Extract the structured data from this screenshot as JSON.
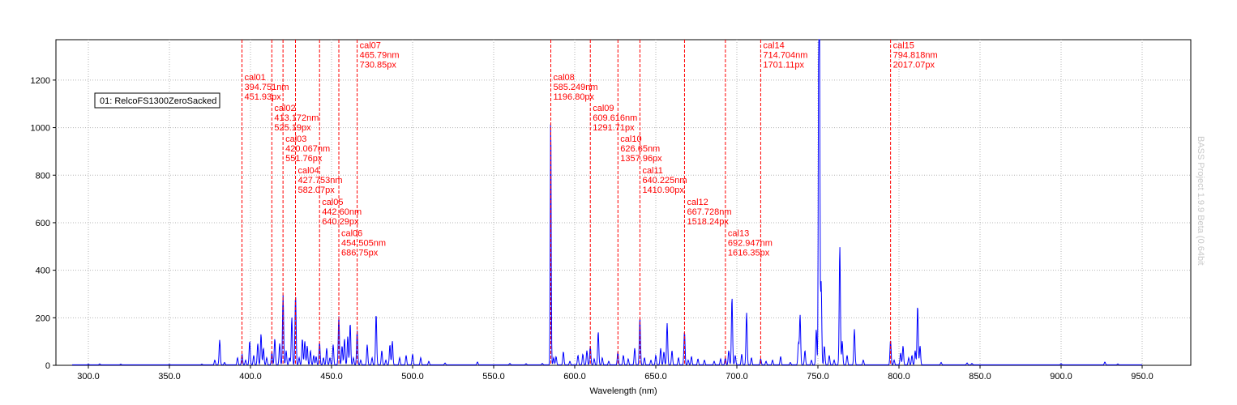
{
  "chart_data": {
    "type": "line",
    "title": "",
    "xlabel": "Wavelength (nm)",
    "ylabel": "",
    "xlim": [
      280,
      980
    ],
    "ylim": [
      0,
      1370
    ],
    "xticks": [
      "300.0",
      "350.0",
      "400.0",
      "450.0",
      "500.0",
      "550.0",
      "600.0",
      "650.0",
      "700.0",
      "750.0",
      "800.0",
      "850.0",
      "900.0",
      "950.0"
    ],
    "xtick_values": [
      300,
      350,
      400,
      450,
      500,
      550,
      600,
      650,
      700,
      750,
      800,
      850,
      900,
      950
    ],
    "yticks": [
      "0",
      "200",
      "400",
      "600",
      "800",
      "1000",
      "1200"
    ],
    "ytick_values": [
      0,
      200,
      400,
      600,
      800,
      1000,
      1200
    ],
    "grid": true,
    "legend": {
      "placement": "top-left",
      "entries": [
        "01: RelcoFS1300ZeroSacked"
      ]
    },
    "watermark": "BASS Project 1.9.9 Beta (0.64bit",
    "colors": {
      "spectrum": "#0000ff",
      "calibration": "#ff0000",
      "overlap": "#800080",
      "grid": "#b4b4b4"
    },
    "series": [
      {
        "name": "01: RelcoFS1300ZeroSacked",
        "peaks": [
          [
            300,
            3
          ],
          [
            307,
            4
          ],
          [
            320,
            3
          ],
          [
            350,
            2
          ],
          [
            370,
            3
          ],
          [
            378,
            20
          ],
          [
            381,
            105
          ],
          [
            384,
            10
          ],
          [
            392,
            30
          ],
          [
            394.8,
            45
          ],
          [
            397,
            20
          ],
          [
            399.5,
            100
          ],
          [
            402,
            40
          ],
          [
            404.5,
            90
          ],
          [
            406.5,
            130
          ],
          [
            408,
            70
          ],
          [
            410,
            30
          ],
          [
            413.2,
            55
          ],
          [
            415,
            110
          ],
          [
            418,
            90
          ],
          [
            420.1,
            295
          ],
          [
            422,
            60
          ],
          [
            424,
            30
          ],
          [
            425.5,
            200
          ],
          [
            427.8,
            295
          ],
          [
            430,
            30
          ],
          [
            432,
            110
          ],
          [
            433.5,
            100
          ],
          [
            435,
            80
          ],
          [
            437,
            60
          ],
          [
            439,
            40
          ],
          [
            440.5,
            35
          ],
          [
            442.6,
            95
          ],
          [
            445,
            30
          ],
          [
            447,
            70
          ],
          [
            449,
            30
          ],
          [
            451,
            85
          ],
          [
            454.5,
            205
          ],
          [
            456.5,
            80
          ],
          [
            458,
            110
          ],
          [
            460,
            120
          ],
          [
            461.5,
            175
          ],
          [
            463.5,
            30
          ],
          [
            465.8,
            145
          ],
          [
            468,
            20
          ],
          [
            472,
            85
          ],
          [
            475,
            30
          ],
          [
            477.5,
            215
          ],
          [
            481,
            60
          ],
          [
            483.5,
            20
          ],
          [
            486,
            85
          ],
          [
            487.5,
            100
          ],
          [
            492,
            30
          ],
          [
            496,
            40
          ],
          [
            500,
            45
          ],
          [
            505,
            30
          ],
          [
            510,
            15
          ],
          [
            520,
            8
          ],
          [
            540,
            12
          ],
          [
            560,
            6
          ],
          [
            570,
            5
          ],
          [
            580,
            6
          ],
          [
            585.2,
            1060
          ],
          [
            587,
            30
          ],
          [
            588.5,
            35
          ],
          [
            593,
            55
          ],
          [
            597,
            15
          ],
          [
            602,
            40
          ],
          [
            605,
            45
          ],
          [
            607.5,
            60
          ],
          [
            609.6,
            80
          ],
          [
            612,
            25
          ],
          [
            614.5,
            140
          ],
          [
            617,
            30
          ],
          [
            621,
            15
          ],
          [
            626.6,
            55
          ],
          [
            630,
            40
          ],
          [
            633,
            25
          ],
          [
            637,
            70
          ],
          [
            640.2,
            200
          ],
          [
            643,
            30
          ],
          [
            647,
            20
          ],
          [
            650,
            40
          ],
          [
            653,
            70
          ],
          [
            655,
            55
          ],
          [
            657,
            175
          ],
          [
            660,
            60
          ],
          [
            664,
            30
          ],
          [
            667.7,
            140
          ],
          [
            670,
            20
          ],
          [
            672,
            35
          ],
          [
            676,
            25
          ],
          [
            680,
            20
          ],
          [
            686,
            15
          ],
          [
            690,
            25
          ],
          [
            692.9,
            30
          ],
          [
            695,
            60
          ],
          [
            697,
            285
          ],
          [
            699,
            40
          ],
          [
            703,
            45
          ],
          [
            706,
            220
          ],
          [
            709,
            30
          ],
          [
            714.7,
            25
          ],
          [
            718,
            15
          ],
          [
            722,
            20
          ],
          [
            727,
            35
          ],
          [
            733,
            10
          ],
          [
            738,
            90
          ],
          [
            739,
            210
          ],
          [
            742,
            60
          ],
          [
            746,
            20
          ],
          [
            749,
            150
          ],
          [
            750.5,
            1360
          ],
          [
            751,
            1200
          ],
          [
            752,
            350
          ],
          [
            754,
            80
          ],
          [
            757,
            40
          ],
          [
            760,
            20
          ],
          [
            763.5,
            500
          ],
          [
            765,
            100
          ],
          [
            768,
            40
          ],
          [
            772.5,
            150
          ],
          [
            778,
            20
          ],
          [
            794.8,
            105
          ],
          [
            797,
            20
          ],
          [
            801,
            50
          ],
          [
            802.5,
            80
          ],
          [
            806,
            30
          ],
          [
            808,
            40
          ],
          [
            810,
            60
          ],
          [
            811.5,
            250
          ],
          [
            813,
            80
          ],
          [
            826,
            10
          ],
          [
            842,
            8
          ],
          [
            845,
            6
          ],
          [
            900,
            5
          ],
          [
            927,
            12
          ],
          [
            935,
            4
          ]
        ]
      }
    ],
    "calibration_lines": [
      {
        "id": "cal01",
        "nm": 394.751,
        "px": "451.93px",
        "label_nm": "394.751nm",
        "label_y": 1200
      },
      {
        "id": "cal02",
        "nm": 413.172,
        "px": "525.19px",
        "label_nm": "413.172nm",
        "label_y": 1070
      },
      {
        "id": "cal03",
        "nm": 420.067,
        "px": "551.76px",
        "label_nm": "420.067nm",
        "label_y": 940
      },
      {
        "id": "cal04",
        "nm": 427.753,
        "px": "582.07px",
        "label_nm": "427.753nm",
        "label_y": 808
      },
      {
        "id": "cal05",
        "nm": 442.6,
        "px": "640.29px",
        "label_nm": "442.60nm",
        "label_y": 675
      },
      {
        "id": "cal06",
        "nm": 454.505,
        "px": "686.75px",
        "label_nm": "454.505nm",
        "label_y": 543
      },
      {
        "id": "cal07",
        "nm": 465.79,
        "px": "730.85px",
        "label_nm": "465.79nm",
        "label_y": 1335
      },
      {
        "id": "cal08",
        "nm": 585.249,
        "px": "1196.80px",
        "label_nm": "585.249nm",
        "label_y": 1200
      },
      {
        "id": "cal09",
        "nm": 609.616,
        "px": "1291.71px",
        "label_nm": "609.616nm",
        "label_y": 1070
      },
      {
        "id": "cal10",
        "nm": 626.65,
        "px": "1357.96px",
        "label_nm": "626.65nm",
        "label_y": 940
      },
      {
        "id": "cal11",
        "nm": 640.225,
        "px": "1410.90px",
        "label_nm": "640.225nm",
        "label_y": 808
      },
      {
        "id": "cal12",
        "nm": 667.728,
        "px": "1518.24px",
        "label_nm": "667.728nm",
        "label_y": 675
      },
      {
        "id": "cal13",
        "nm": 692.947,
        "px": "1616.35px",
        "label_nm": "692.947nm",
        "label_y": 543
      },
      {
        "id": "cal14",
        "nm": 714.704,
        "px": "1701.11px",
        "label_nm": "714.704nm",
        "label_y": 1335
      },
      {
        "id": "cal15",
        "nm": 794.818,
        "px": "2017.07px",
        "label_nm": "794.818nm",
        "label_y": 1335
      }
    ]
  }
}
